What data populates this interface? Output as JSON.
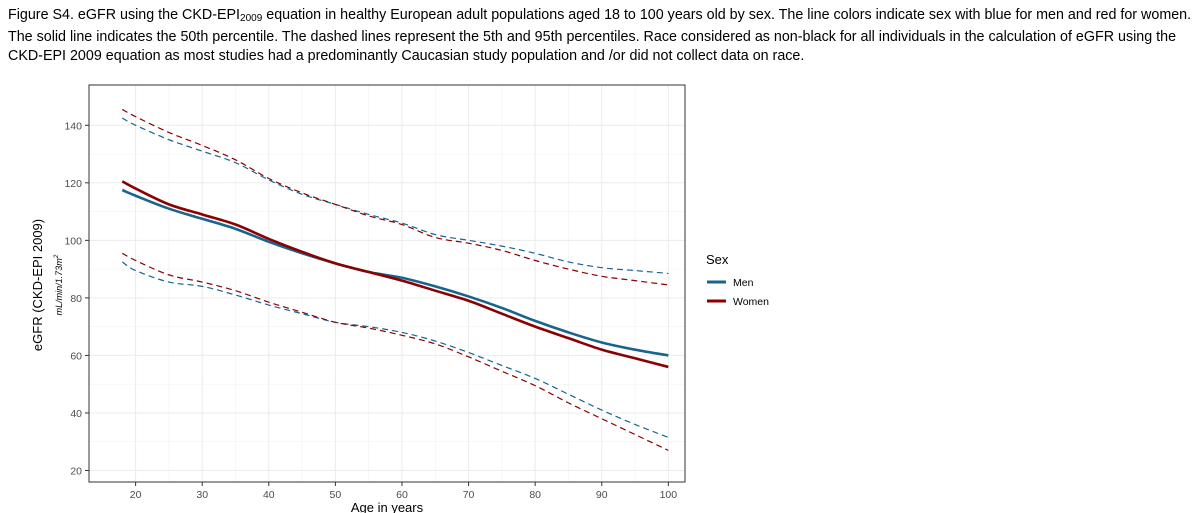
{
  "caption": {
    "prefix": "Figure S4. eGFR using the CKD-EPI",
    "subscript": "2009",
    "suffix": " equation in healthy European adult populations aged 18 to 100 years old by sex. The line colors indicate sex with blue for men and red for women. The solid line indicates the 50th percentile. The dashed lines represent the 5th and 95th percentiles. Race considered as non-black for all individuals in the calculation of eGFR using the CKD-EPI 2009 equation as most studies had a predominantly Caucasian study population and /or did not collect data on race."
  },
  "chart_data": {
    "type": "line",
    "xlabel": "Age in years",
    "ylabel": "eGFR (CKD-EPI 2009)",
    "ylabel_unit": "mL/min/1.73m",
    "ylabel_unit_superscript": "2",
    "xlim": [
      13,
      102.5
    ],
    "ylim": [
      16,
      154
    ],
    "x_ticks": [
      20,
      30,
      40,
      50,
      60,
      70,
      80,
      90,
      100
    ],
    "y_ticks": [
      20,
      40,
      60,
      80,
      100,
      120,
      140
    ],
    "grid": true,
    "legend": {
      "title": "Sex",
      "position": "right",
      "entries": [
        {
          "name": "Men",
          "color": "#19648f"
        },
        {
          "name": "Women",
          "color": "#8b0000"
        }
      ]
    },
    "x": [
      18,
      20,
      25,
      30,
      35,
      40,
      45,
      50,
      55,
      60,
      65,
      70,
      75,
      80,
      85,
      90,
      95,
      100
    ],
    "series": [
      {
        "name": "Men",
        "percentile": "p50",
        "style": "solid",
        "color": "#19648f",
        "values": [
          117.5,
          115.5,
          111,
          107.5,
          104,
          99.5,
          95.5,
          92,
          89,
          87,
          84,
          80.5,
          76.5,
          72,
          68,
          64.5,
          62,
          60
        ]
      },
      {
        "name": "Women",
        "percentile": "p50",
        "style": "solid",
        "color": "#8b0000",
        "values": [
          120.5,
          118,
          112.5,
          109,
          105.5,
          100.5,
          96,
          92,
          89,
          86,
          82.5,
          79,
          74.5,
          70,
          66,
          62,
          59,
          56
        ]
      },
      {
        "name": "Men",
        "percentile": "p95",
        "style": "dashed",
        "color": "#19648f",
        "values": [
          142.5,
          140,
          135,
          131,
          127,
          121,
          116,
          112.5,
          109,
          106,
          102,
          100,
          98,
          95.5,
          92.5,
          90.5,
          89.5,
          88.5
        ]
      },
      {
        "name": "Women",
        "percentile": "p95",
        "style": "dashed",
        "color": "#8b0000",
        "values": [
          145.5,
          143,
          137.5,
          133,
          128,
          121.5,
          116.5,
          112.5,
          108.5,
          105.5,
          101,
          99,
          96.5,
          93,
          90,
          87.5,
          86,
          84.5
        ]
      },
      {
        "name": "Men",
        "percentile": "p5",
        "style": "dashed",
        "color": "#19648f",
        "values": [
          92.5,
          89.5,
          85.5,
          84,
          81,
          77.5,
          74.5,
          71.5,
          70,
          68,
          65,
          61,
          56.5,
          52,
          46.5,
          41,
          36,
          31.5
        ]
      },
      {
        "name": "Women",
        "percentile": "p5",
        "style": "dashed",
        "color": "#8b0000",
        "values": [
          95.5,
          93,
          88,
          85.5,
          82.5,
          78.5,
          75,
          71.5,
          69.5,
          67,
          64,
          59.5,
          54.5,
          49.5,
          43.5,
          38,
          32.5,
          27
        ]
      }
    ]
  }
}
